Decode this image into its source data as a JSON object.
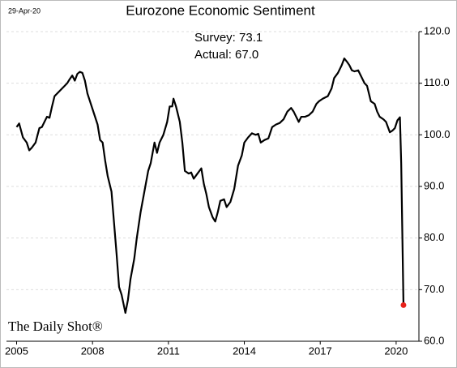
{
  "chart_data": {
    "type": "line",
    "title": "Eurozone Economic Sentiment",
    "date": "29-Apr-20",
    "annotations": [
      "Survey: 73.1",
      "Actual:  67.0"
    ],
    "source": "The Daily Shot®",
    "grid": true,
    "xlim": [
      2004.6,
      2020.9
    ],
    "xticks": [
      2005,
      2008,
      2011,
      2014,
      2017,
      2020
    ],
    "ylim": [
      60,
      120
    ],
    "yticks": [
      {
        "value": 60,
        "label": "60.0"
      },
      {
        "value": 70,
        "label": "70.0"
      },
      {
        "value": 80,
        "label": "80.0"
      },
      {
        "value": 90,
        "label": "90.0"
      },
      {
        "value": 100,
        "label": "100.0"
      },
      {
        "value": 110,
        "label": "110.0"
      },
      {
        "value": 120,
        "label": "120.0"
      }
    ],
    "marker_color": "#e8221b",
    "x": [
      2005.0,
      2005.1,
      2005.25,
      2005.4,
      2005.5,
      2005.6,
      2005.75,
      2005.9,
      2006.0,
      2006.1,
      2006.2,
      2006.3,
      2006.4,
      2006.5,
      2006.7,
      2006.9,
      2007.0,
      2007.1,
      2007.2,
      2007.3,
      2007.4,
      2007.5,
      2007.6,
      2007.7,
      2007.8,
      2008.0,
      2008.2,
      2008.3,
      2008.4,
      2008.5,
      2008.6,
      2008.75,
      2008.85,
      2008.95,
      2009.05,
      2009.15,
      2009.3,
      2009.4,
      2009.5,
      2009.65,
      2009.75,
      2009.9,
      2010.05,
      2010.2,
      2010.3,
      2010.45,
      2010.55,
      2010.65,
      2010.8,
      2010.95,
      2011.05,
      2011.15,
      2011.2,
      2011.3,
      2011.45,
      2011.55,
      2011.65,
      2011.8,
      2011.9,
      2012.0,
      2012.15,
      2012.3,
      2012.4,
      2012.5,
      2012.6,
      2012.75,
      2012.85,
      2012.95,
      2013.05,
      2013.2,
      2013.3,
      2013.45,
      2013.6,
      2013.75,
      2013.9,
      2014.0,
      2014.15,
      2014.3,
      2014.45,
      2014.55,
      2014.65,
      2014.8,
      2014.95,
      2015.1,
      2015.25,
      2015.4,
      2015.55,
      2015.7,
      2015.85,
      2015.95,
      2016.05,
      2016.15,
      2016.25,
      2016.4,
      2016.55,
      2016.7,
      2016.85,
      2016.95,
      2017.1,
      2017.3,
      2017.45,
      2017.55,
      2017.7,
      2017.85,
      2017.95,
      2018.05,
      2018.15,
      2018.25,
      2018.35,
      2018.5,
      2018.6,
      2018.75,
      2018.85,
      2019.0,
      2019.15,
      2019.25,
      2019.35,
      2019.5,
      2019.6,
      2019.75,
      2019.85,
      2019.95,
      2020.05,
      2020.15,
      2020.2,
      2020.29
    ],
    "series": [
      {
        "color": "#000000",
        "values": [
          101.5,
          102.2,
          99.5,
          98.5,
          97,
          97.5,
          98.5,
          101.3,
          101.5,
          102.5,
          103.5,
          103.3,
          105.5,
          107.5,
          108.5,
          109.5,
          110,
          110.8,
          111.5,
          110.5,
          111.8,
          112.2,
          112,
          110.5,
          108,
          105,
          102,
          99,
          98.5,
          95,
          92,
          89,
          83,
          77,
          70.5,
          69,
          65.5,
          68,
          72,
          76,
          80,
          85,
          89,
          93,
          94.5,
          98.5,
          96.5,
          98.5,
          100,
          102.5,
          105.5,
          105.5,
          107,
          105.5,
          102.5,
          98.5,
          93,
          92.5,
          92.7,
          91.5,
          92.5,
          93.5,
          90.5,
          88.5,
          86,
          84,
          83.2,
          85,
          87.2,
          87.5,
          86,
          87,
          89.5,
          94,
          96,
          98.5,
          99.5,
          100.3,
          100,
          100.2,
          98.5,
          99,
          99.3,
          101.5,
          102,
          102.3,
          103,
          104.5,
          105.2,
          104.5,
          103.5,
          102.5,
          103.5,
          103.5,
          103.8,
          104.5,
          106,
          106.5,
          107,
          107.5,
          109,
          111,
          112,
          113.5,
          114.8,
          114.2,
          113.5,
          112.5,
          112.3,
          112.5,
          111.5,
          110,
          109.5,
          106.5,
          106,
          104.5,
          103.5,
          103,
          102.5,
          100.5,
          100.8,
          101.3,
          102.8,
          103.4,
          94.5,
          67.0
        ]
      }
    ]
  }
}
